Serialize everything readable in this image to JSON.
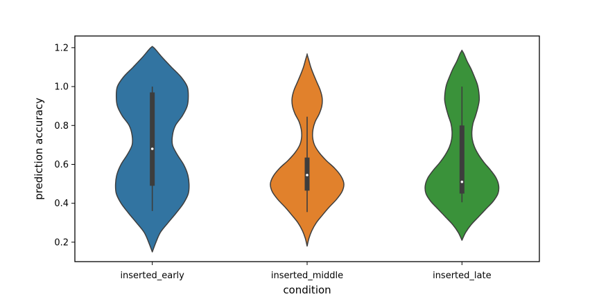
{
  "chart_data": {
    "type": "violin",
    "title": "",
    "xlabel": "condition",
    "ylabel": "prediction accuracy",
    "categories": [
      "inserted_early",
      "inserted_middle",
      "inserted_late"
    ],
    "ylim": [
      0.1,
      1.26
    ],
    "yticks": [
      0.2,
      0.4,
      0.6,
      0.8,
      1.0,
      1.2
    ],
    "ytick_labels": [
      "0.2",
      "0.4",
      "0.6",
      "0.8",
      "1.0",
      "1.2"
    ],
    "grid": false,
    "legend": "none",
    "series": [
      {
        "category": "inserted_early",
        "color": "#3274a1",
        "box": {
          "whisker_low": 0.36,
          "q1": 0.49,
          "median": 0.68,
          "q3": 0.97,
          "whisker_high": 1.0
        },
        "density": {
          "y": [
            0.15,
            0.2,
            0.25,
            0.3,
            0.35,
            0.4,
            0.45,
            0.5,
            0.55,
            0.6,
            0.65,
            0.7,
            0.75,
            0.8,
            0.85,
            0.9,
            0.95,
            1.0,
            1.05,
            1.1,
            1.15,
            1.2
          ],
          "w": [
            0.0,
            0.1,
            0.22,
            0.43,
            0.65,
            0.85,
            0.98,
            1.0,
            0.96,
            0.85,
            0.68,
            0.55,
            0.55,
            0.63,
            0.82,
            0.95,
            0.98,
            0.95,
            0.78,
            0.52,
            0.27,
            0.04
          ]
        }
      },
      {
        "category": "inserted_middle",
        "color": "#e1812c",
        "box": {
          "whisker_low": 0.355,
          "q1": 0.465,
          "median": 0.545,
          "q3": 0.635,
          "whisker_high": 0.845
        },
        "density": {
          "y": [
            0.18,
            0.22,
            0.26,
            0.3,
            0.34,
            0.38,
            0.42,
            0.46,
            0.5,
            0.54,
            0.58,
            0.62,
            0.66,
            0.7,
            0.74,
            0.78,
            0.82,
            0.86,
            0.9,
            0.94,
            0.98,
            1.02,
            1.06,
            1.1,
            1.14,
            1.165
          ],
          "w": [
            0.0,
            0.05,
            0.13,
            0.25,
            0.42,
            0.6,
            0.8,
            0.95,
            1.0,
            0.92,
            0.75,
            0.52,
            0.33,
            0.2,
            0.15,
            0.16,
            0.22,
            0.33,
            0.4,
            0.41,
            0.36,
            0.27,
            0.18,
            0.1,
            0.04,
            0.0
          ]
        }
      },
      {
        "category": "inserted_late",
        "color": "#3a923a",
        "box": {
          "whisker_low": 0.405,
          "q1": 0.45,
          "median": 0.51,
          "q3": 0.8,
          "whisker_high": 1.0
        },
        "density": {
          "y": [
            0.21,
            0.25,
            0.29,
            0.33,
            0.37,
            0.41,
            0.45,
            0.49,
            0.53,
            0.57,
            0.61,
            0.65,
            0.69,
            0.73,
            0.77,
            0.81,
            0.85,
            0.89,
            0.93,
            0.97,
            1.01,
            1.05,
            1.09,
            1.13,
            1.17,
            1.185
          ],
          "w": [
            0.0,
            0.1,
            0.25,
            0.45,
            0.65,
            0.85,
            0.98,
            1.0,
            0.93,
            0.78,
            0.6,
            0.45,
            0.34,
            0.28,
            0.27,
            0.3,
            0.37,
            0.43,
            0.47,
            0.46,
            0.42,
            0.34,
            0.25,
            0.14,
            0.05,
            0.0
          ]
        }
      }
    ]
  }
}
